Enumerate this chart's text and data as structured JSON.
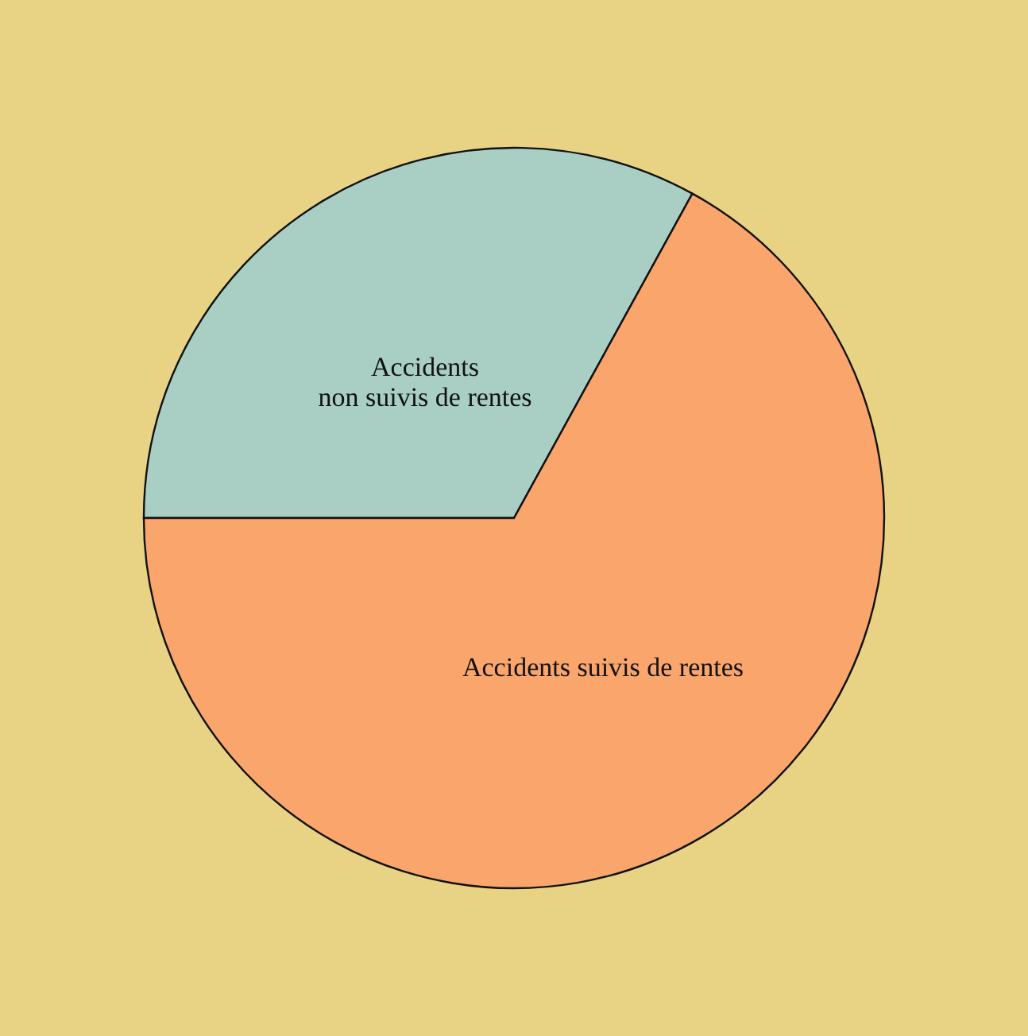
{
  "chart_data": {
    "type": "pie",
    "categories": [
      "Accidents\nnon suivis de rentes",
      "Accidents suivis de rentes"
    ],
    "values": [
      33,
      67
    ],
    "colors": [
      "#a9cfc5",
      "#f9a56c"
    ]
  }
}
